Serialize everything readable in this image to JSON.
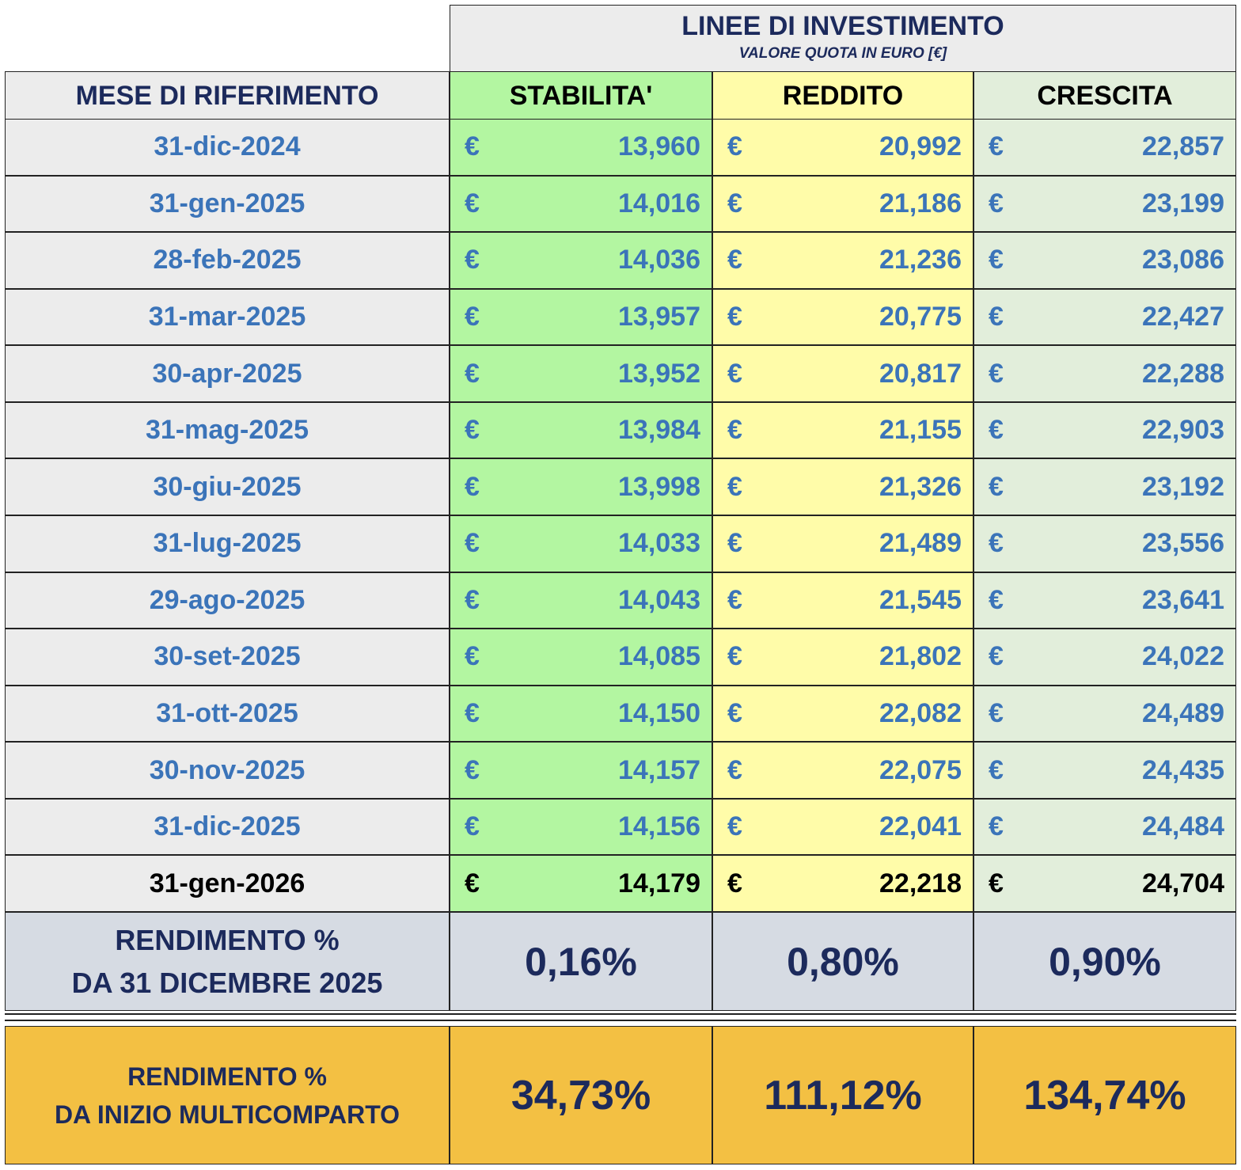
{
  "header": {
    "title": "LINEE DI INVESTIMENTO",
    "subtitle": "VALORE QUOTA IN EURO [€]"
  },
  "columns": [
    "MESE DI RIFERIMENTO",
    "STABILITA'",
    "REDDITO",
    "CRESCITA"
  ],
  "currency": "€",
  "rows": [
    [
      "31-dic-2024",
      "13,960",
      "20,992",
      "22,857"
    ],
    [
      "31-gen-2025",
      "14,016",
      "21,186",
      "23,199"
    ],
    [
      "28-feb-2025",
      "14,036",
      "21,236",
      "23,086"
    ],
    [
      "31-mar-2025",
      "13,957",
      "20,775",
      "22,427"
    ],
    [
      "30-apr-2025",
      "13,952",
      "20,817",
      "22,288"
    ],
    [
      "31-mag-2025",
      "13,984",
      "21,155",
      "22,903"
    ],
    [
      "30-giu-2025",
      "13,998",
      "21,326",
      "23,192"
    ],
    [
      "31-lug-2025",
      "14,033",
      "21,489",
      "23,556"
    ],
    [
      "29-ago-2025",
      "14,043",
      "21,545",
      "23,641"
    ],
    [
      "30-set-2025",
      "14,085",
      "21,802",
      "24,022"
    ],
    [
      "31-ott-2025",
      "14,150",
      "22,082",
      "24,489"
    ],
    [
      "30-nov-2025",
      "14,157",
      "22,075",
      "24,435"
    ],
    [
      "31-dic-2025",
      "14,156",
      "22,041",
      "24,484"
    ],
    [
      "31-gen-2026",
      "14,179",
      "22,218",
      "24,704"
    ]
  ],
  "monthly_return": {
    "label": [
      "RENDIMENTO %",
      "DA 31 DICEMBRE 2025"
    ],
    "values": [
      "0,16%",
      "0,80%",
      "0,90%"
    ]
  },
  "total_return": {
    "label": [
      "RENDIMENTO %",
      "DA INIZIO MULTICOMPARTO"
    ],
    "values": [
      "34,73%",
      "111,12%",
      "134,74%"
    ]
  }
}
